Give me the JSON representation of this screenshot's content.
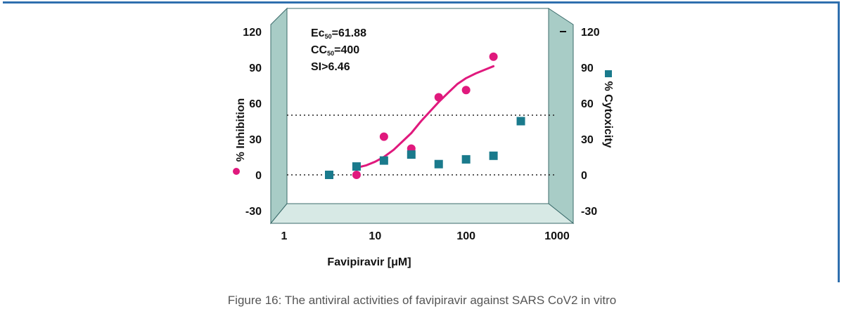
{
  "chart_data": {
    "type": "scatter",
    "x_scale": "log",
    "xlim": [
      1,
      1000
    ],
    "ylim": [
      -30,
      120
    ],
    "x_ticks": [
      "1",
      "10",
      "100",
      "1000"
    ],
    "y_ticks": [
      "120",
      "90",
      "60",
      "30",
      "0",
      "-30"
    ],
    "xlabel": "Favipiravir [μM]",
    "ylabel_left": "% Inhibition",
    "ylabel_right": "% Cytoxicity",
    "reference_lines": [
      50,
      0
    ],
    "annotations": [
      {
        "main": "Ec",
        "sub": "50",
        "rest": "=61.88"
      },
      {
        "main": "CC",
        "sub": "50",
        "rest": "=400"
      },
      {
        "main": "SI>6.46",
        "sub": "",
        "rest": ""
      }
    ],
    "series": [
      {
        "axis": "left",
        "marker": "circle",
        "color": "#e0197d",
        "x": [
          6.25,
          12.5,
          25,
          50,
          100,
          200
        ],
        "y": [
          0,
          32,
          22,
          65,
          71,
          99
        ]
      },
      {
        "axis": "right",
        "marker": "square",
        "color": "#1a7a8c",
        "x": [
          3.125,
          6.25,
          12.5,
          25,
          50,
          100,
          200,
          400
        ],
        "y": [
          0,
          7,
          12,
          17,
          9,
          13,
          16,
          45
        ]
      },
      {
        "axis": "left",
        "type": "line",
        "color": "#e0197d",
        "x": [
          6.25,
          8,
          10,
          12.5,
          16,
          20,
          25,
          32,
          40,
          50,
          64,
          80,
          100,
          128,
          160,
          200
        ],
        "y": [
          6,
          8,
          11,
          15,
          21,
          28,
          35,
          45,
          53,
          61,
          69,
          76,
          81,
          85,
          88,
          91
        ]
      }
    ]
  },
  "caption": "Figure 16: The antiviral activities of favipiravir against SARS CoV2 in vitro"
}
